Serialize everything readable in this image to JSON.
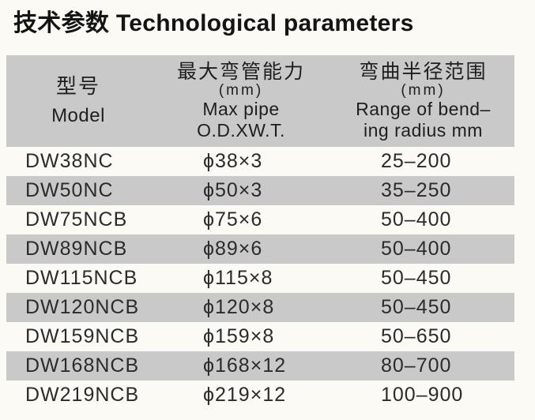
{
  "title": "技术参数 Technological parameters",
  "colors": {
    "band_gray": "#c9c9c9",
    "page_background": "#fbfaf5",
    "text": "#2b2b2b"
  },
  "table": {
    "columns": [
      {
        "zh": "型号",
        "en_line1": "Model"
      },
      {
        "zh": "最大弯管能力",
        "unit": "(mm)",
        "en_line1": "Max pipe",
        "en_line2": "O.D.XW.T."
      },
      {
        "zh": "弯曲半径范围",
        "unit": "(mm)",
        "en_line1": "Range of bend–",
        "en_line2": "ing radius mm"
      }
    ],
    "rows": [
      {
        "model": "DW38NC",
        "capacity": "ϕ38×3",
        "radius": "25–200"
      },
      {
        "model": "DW50NC",
        "capacity": "ϕ50×3",
        "radius": "35–250"
      },
      {
        "model": "DW75NCB",
        "capacity": "ϕ75×6",
        "radius": "50–400"
      },
      {
        "model": "DW89NCB",
        "capacity": "ϕ89×6",
        "radius": "50–400"
      },
      {
        "model": "DW115NCB",
        "capacity": "ϕ115×8",
        "radius": "50–450"
      },
      {
        "model": "DW120NCB",
        "capacity": "ϕ120×8",
        "radius": "50–450"
      },
      {
        "model": "DW159NCB",
        "capacity": "ϕ159×8",
        "radius": "50–650"
      },
      {
        "model": "DW168NCB",
        "capacity": "ϕ168×12",
        "radius": "80–700"
      },
      {
        "model": "DW219NCB",
        "capacity": "ϕ219×12",
        "radius": "100–900"
      }
    ]
  }
}
